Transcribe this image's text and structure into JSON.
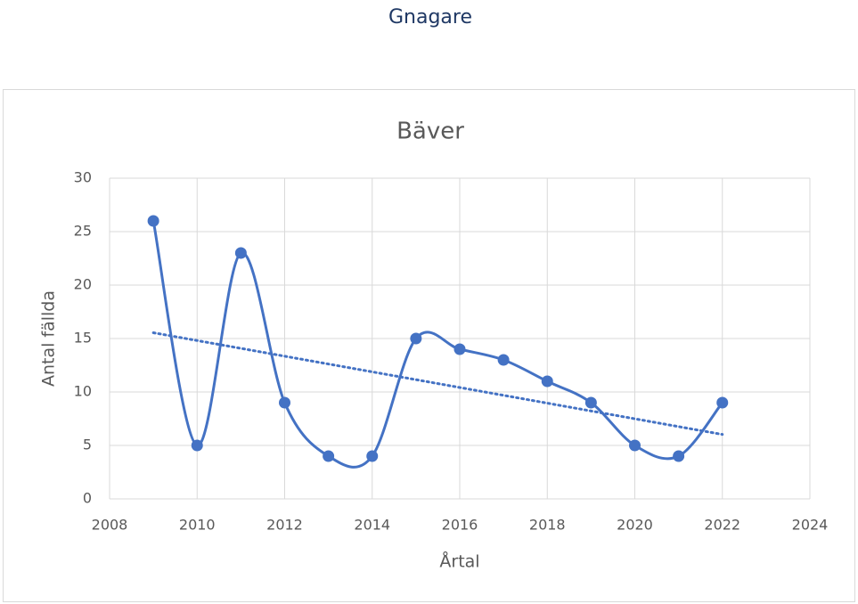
{
  "page_title": "Gnagare",
  "chart_data": {
    "type": "scatter",
    "title": "Bäver",
    "x_label": "Årtal",
    "y_label": "Antal fällda",
    "x": [
      2009,
      2010,
      2011,
      2012,
      2013,
      2014,
      2015,
      2016,
      2017,
      2018,
      2019,
      2020,
      2021,
      2022
    ],
    "values": [
      26,
      5,
      23,
      9,
      4,
      4,
      15,
      14,
      13,
      11,
      9,
      5,
      4,
      9
    ],
    "color": "#4472c4",
    "smooth": true,
    "trendline": "linear",
    "xlim": [
      2008,
      2024
    ],
    "xticks": [
      2008,
      2010,
      2012,
      2014,
      2016,
      2018,
      2020,
      2022,
      2024
    ],
    "ylim": [
      0,
      30
    ],
    "yticks": [
      0,
      5,
      10,
      15,
      20,
      25,
      30
    ],
    "grid": true
  }
}
